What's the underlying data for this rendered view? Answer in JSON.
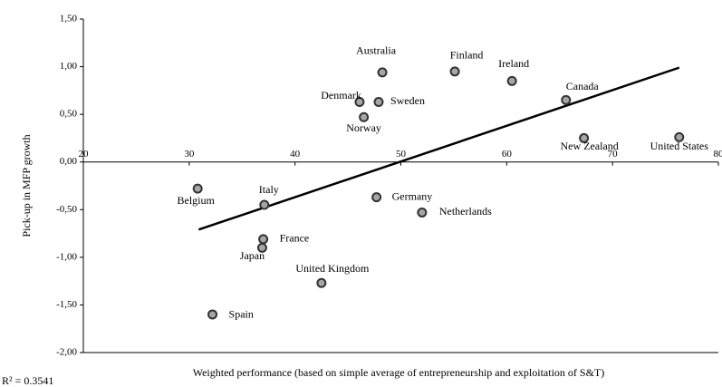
{
  "chart_data": {
    "type": "scatter",
    "y_label": "Pick-up in MFP growth",
    "x_label": "Weighted performance (based on simple average of entrepreneurship and exploitation of S&T)",
    "annotation": "R² = 0.3541",
    "labels": [
      "Australia",
      "Finland",
      "Ireland",
      "Canada",
      "Denmark",
      "Sweden",
      "Norway",
      "New Zealand",
      "United States",
      "Belgium",
      "Italy",
      "Germany",
      "Netherlands",
      "France",
      "Japan",
      "United Kingdom",
      "Spain"
    ],
    "x": [
      48.25,
      55.1,
      60.5,
      65.6,
      46.1,
      47.9,
      46.5,
      67.3,
      76.3,
      30.8,
      37.1,
      47.7,
      52.0,
      37.0,
      36.9,
      42.5,
      32.2
    ],
    "y": [
      0.94,
      0.95,
      0.85,
      0.65,
      0.63,
      0.63,
      0.47,
      0.25,
      0.26,
      -0.28,
      -0.45,
      -0.37,
      -0.53,
      -0.81,
      -0.9,
      -1.27,
      -1.6
    ],
    "color": "#a6a6a6",
    "trendline": {
      "x": [
        30.9,
        76.3
      ],
      "y": [
        -0.71,
        0.99
      ]
    },
    "xlim": [
      20,
      80
    ],
    "xticks": [
      20,
      30,
      40,
      50,
      60,
      70,
      80
    ],
    "ylim": [
      -2.0,
      1.5
    ],
    "yticks": [
      {
        "value": 1.5,
        "label": "1,50"
      },
      {
        "value": 1.0,
        "label": "1,00"
      },
      {
        "value": 0.5,
        "label": "0,50"
      },
      {
        "value": 0.0,
        "label": "0,00"
      },
      {
        "value": -0.5,
        "label": "-0,50"
      },
      {
        "value": -1.0,
        "label": "-1,00"
      },
      {
        "value": -1.5,
        "label": "-1,50"
      },
      {
        "value": -2.0,
        "label": "-2,00"
      }
    ]
  }
}
